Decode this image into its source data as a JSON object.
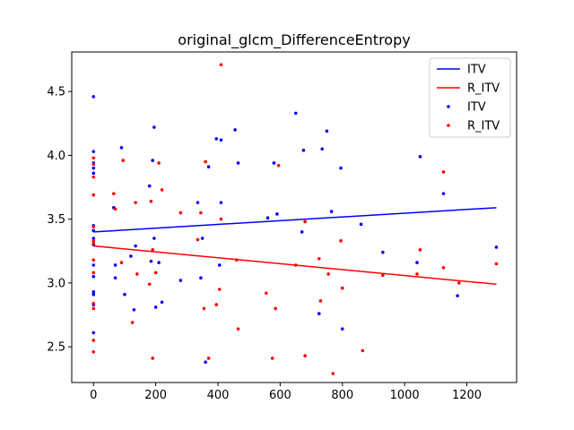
{
  "chart_data": {
    "type": "scatter",
    "title": "original_glcm_DifferenceEntropy",
    "xlabel": "",
    "ylabel": "",
    "xlim": [
      -70,
      1360
    ],
    "ylim": [
      2.22,
      4.81
    ],
    "xticks": [
      0,
      200,
      400,
      600,
      800,
      1000,
      1200
    ],
    "yticks": [
      2.5,
      3.0,
      3.5,
      4.0,
      4.5
    ],
    "xtick_labels": [
      "0",
      "200",
      "400",
      "600",
      "800",
      "1000",
      "1200"
    ],
    "ytick_labels": [
      "2.5",
      "3.0",
      "3.5",
      "4.0",
      "4.5"
    ],
    "grid": false,
    "legend_position": "top-right",
    "legend": [
      {
        "label": "ITV",
        "kind": "line",
        "color": "#0000ff"
      },
      {
        "label": "R_ITV",
        "kind": "line",
        "color": "#ff0000"
      },
      {
        "label": "ITV",
        "kind": "marker",
        "color": "#0000ff"
      },
      {
        "label": "R_ITV",
        "kind": "marker",
        "color": "#ff0000"
      }
    ],
    "fit_lines": [
      {
        "name": "ITV",
        "color": "#0000ff",
        "x": [
          0,
          1295
        ],
        "y": [
          3.4,
          3.59
        ]
      },
      {
        "name": "R_ITV",
        "color": "#ff0000",
        "x": [
          0,
          1295
        ],
        "y": [
          3.29,
          2.99
        ]
      }
    ],
    "series": [
      {
        "name": "ITV",
        "color": "#0000ff",
        "points": [
          [
            0,
            4.46
          ],
          [
            0,
            4.03
          ],
          [
            0,
            3.94
          ],
          [
            0,
            3.9
          ],
          [
            0,
            3.86
          ],
          [
            0,
            3.45
          ],
          [
            0,
            3.41
          ],
          [
            0,
            3.35
          ],
          [
            0,
            3.3
          ],
          [
            0,
            3.14
          ],
          [
            0,
            3.05
          ],
          [
            0,
            2.93
          ],
          [
            0,
            2.91
          ],
          [
            0,
            2.83
          ],
          [
            0,
            2.61
          ],
          [
            65,
            3.59
          ],
          [
            70,
            3.14
          ],
          [
            70,
            3.04
          ],
          [
            90,
            4.06
          ],
          [
            100,
            2.91
          ],
          [
            120,
            3.21
          ],
          [
            130,
            2.79
          ],
          [
            135,
            3.29
          ],
          [
            180,
            3.76
          ],
          [
            185,
            3.17
          ],
          [
            190,
            3.96
          ],
          [
            195,
            4.22
          ],
          [
            195,
            3.35
          ],
          [
            200,
            2.81
          ],
          [
            210,
            3.16
          ],
          [
            220,
            2.85
          ],
          [
            280,
            3.02
          ],
          [
            335,
            3.63
          ],
          [
            345,
            3.04
          ],
          [
            350,
            3.35
          ],
          [
            360,
            2.38
          ],
          [
            370,
            3.91
          ],
          [
            395,
            4.13
          ],
          [
            405,
            3.14
          ],
          [
            410,
            4.12
          ],
          [
            410,
            3.63
          ],
          [
            455,
            4.2
          ],
          [
            465,
            3.94
          ],
          [
            560,
            3.51
          ],
          [
            580,
            3.94
          ],
          [
            590,
            3.54
          ],
          [
            650,
            4.33
          ],
          [
            670,
            3.4
          ],
          [
            675,
            4.04
          ],
          [
            725,
            2.76
          ],
          [
            735,
            4.05
          ],
          [
            750,
            4.19
          ],
          [
            765,
            3.56
          ],
          [
            795,
            3.9
          ],
          [
            800,
            2.64
          ],
          [
            860,
            3.46
          ],
          [
            930,
            3.24
          ],
          [
            1040,
            3.16
          ],
          [
            1050,
            3.99
          ],
          [
            1125,
            3.7
          ],
          [
            1170,
            2.9
          ],
          [
            1295,
            3.28
          ]
        ]
      },
      {
        "name": "R_ITV",
        "color": "#ff0000",
        "points": [
          [
            0,
            3.98
          ],
          [
            0,
            3.93
          ],
          [
            0,
            3.83
          ],
          [
            0,
            3.69
          ],
          [
            0,
            3.44
          ],
          [
            0,
            3.33
          ],
          [
            0,
            3.31
          ],
          [
            0,
            3.18
          ],
          [
            0,
            3.08
          ],
          [
            0,
            2.84
          ],
          [
            0,
            2.8
          ],
          [
            0,
            2.55
          ],
          [
            0,
            2.46
          ],
          [
            65,
            3.7
          ],
          [
            70,
            3.58
          ],
          [
            90,
            3.16
          ],
          [
            95,
            3.96
          ],
          [
            125,
            2.69
          ],
          [
            135,
            3.63
          ],
          [
            140,
            3.07
          ],
          [
            180,
            2.99
          ],
          [
            185,
            3.64
          ],
          [
            190,
            3.26
          ],
          [
            190,
            2.41
          ],
          [
            200,
            3.08
          ],
          [
            210,
            3.94
          ],
          [
            220,
            3.73
          ],
          [
            280,
            3.55
          ],
          [
            335,
            3.34
          ],
          [
            345,
            3.55
          ],
          [
            355,
            2.8
          ],
          [
            360,
            3.95
          ],
          [
            370,
            2.41
          ],
          [
            395,
            2.83
          ],
          [
            405,
            2.95
          ],
          [
            410,
            4.71
          ],
          [
            410,
            3.5
          ],
          [
            460,
            3.18
          ],
          [
            465,
            2.64
          ],
          [
            555,
            2.92
          ],
          [
            575,
            2.41
          ],
          [
            585,
            2.8
          ],
          [
            595,
            3.92
          ],
          [
            650,
            3.14
          ],
          [
            680,
            2.43
          ],
          [
            680,
            3.48
          ],
          [
            725,
            3.19
          ],
          [
            730,
            2.86
          ],
          [
            755,
            3.07
          ],
          [
            770,
            2.29
          ],
          [
            795,
            3.33
          ],
          [
            800,
            2.96
          ],
          [
            865,
            2.47
          ],
          [
            930,
            3.06
          ],
          [
            1040,
            3.07
          ],
          [
            1050,
            3.26
          ],
          [
            1125,
            3.87
          ],
          [
            1125,
            3.12
          ],
          [
            1175,
            3.0
          ],
          [
            1295,
            3.15
          ]
        ]
      }
    ]
  }
}
